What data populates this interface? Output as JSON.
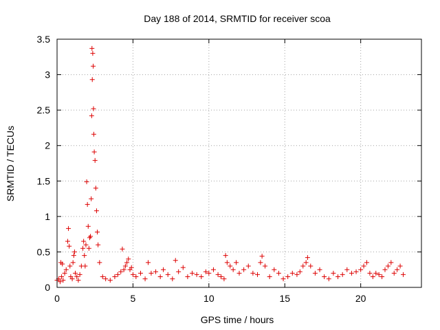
{
  "chart_data": {
    "type": "scatter",
    "title": "Day 188 of 2014, SRMTID for receiver scoa",
    "xlabel": "GPS time / hours",
    "ylabel": "SRMTID / TECUs",
    "xlim": [
      0,
      24
    ],
    "ylim": [
      0,
      3.5
    ],
    "xticks": [
      0,
      5,
      10,
      15,
      20
    ],
    "xtick_labels": [
      "0",
      "5",
      "10",
      "15",
      "20"
    ],
    "yticks": [
      0,
      0.5,
      1,
      1.5,
      2,
      2.5,
      3,
      3.5
    ],
    "ytick_labels": [
      "0",
      "0.5",
      "1",
      "1.5",
      "2",
      "2.5",
      "3",
      "3.5"
    ],
    "grid": true,
    "marker": "+",
    "color": "#dd0000",
    "series": [
      {
        "name": "SRMTID",
        "x": [
          0.0,
          0.1,
          0.2,
          0.25,
          0.3,
          0.35,
          0.4,
          0.5,
          0.6,
          0.7,
          0.75,
          0.8,
          0.85,
          0.9,
          1.0,
          1.05,
          1.1,
          1.15,
          1.2,
          1.3,
          1.4,
          1.5,
          1.6,
          1.7,
          1.75,
          1.8,
          1.85,
          1.9,
          1.95,
          2.0,
          2.05,
          2.1,
          2.15,
          2.2,
          2.25,
          2.28,
          2.3,
          2.32,
          2.35,
          2.38,
          2.4,
          2.42,
          2.45,
          2.5,
          2.55,
          2.6,
          2.65,
          2.7,
          2.8,
          3.0,
          3.2,
          3.5,
          3.8,
          4.0,
          4.2,
          4.3,
          4.4,
          4.5,
          4.6,
          4.7,
          4.8,
          4.9,
          5.0,
          5.2,
          5.5,
          5.8,
          6.0,
          6.2,
          6.5,
          6.8,
          7.0,
          7.3,
          7.6,
          7.8,
          8.0,
          8.3,
          8.6,
          8.9,
          9.2,
          9.5,
          9.8,
          10.0,
          10.3,
          10.6,
          10.8,
          11.0,
          11.1,
          11.2,
          11.4,
          11.6,
          11.8,
          12.0,
          12.3,
          12.6,
          12.9,
          13.2,
          13.4,
          13.5,
          13.7,
          14.0,
          14.3,
          14.6,
          14.9,
          15.2,
          15.5,
          15.8,
          16.0,
          16.2,
          16.4,
          16.5,
          16.7,
          17.0,
          17.3,
          17.6,
          17.9,
          18.2,
          18.5,
          18.8,
          19.1,
          19.4,
          19.7,
          20.0,
          20.2,
          20.4,
          20.6,
          20.8,
          21.0,
          21.2,
          21.4,
          21.6,
          21.8,
          22.0,
          22.2,
          22.4,
          22.6,
          22.8
        ],
        "y": [
          0.1,
          0.12,
          0.08,
          0.35,
          0.15,
          0.33,
          0.1,
          0.2,
          0.25,
          0.65,
          0.83,
          0.58,
          0.3,
          0.15,
          0.12,
          0.35,
          0.45,
          0.5,
          0.2,
          0.15,
          0.1,
          0.18,
          0.3,
          0.55,
          0.65,
          0.45,
          0.3,
          0.6,
          1.49,
          1.17,
          0.86,
          0.55,
          0.7,
          0.72,
          1.25,
          2.42,
          3.37,
          2.93,
          3.3,
          3.12,
          2.52,
          2.16,
          1.91,
          1.79,
          1.4,
          1.08,
          0.78,
          0.6,
          0.35,
          0.15,
          0.12,
          0.1,
          0.15,
          0.18,
          0.22,
          0.54,
          0.25,
          0.3,
          0.35,
          0.4,
          0.25,
          0.28,
          0.18,
          0.15,
          0.2,
          0.12,
          0.35,
          0.2,
          0.22,
          0.15,
          0.25,
          0.18,
          0.12,
          0.38,
          0.22,
          0.28,
          0.15,
          0.2,
          0.18,
          0.15,
          0.22,
          0.2,
          0.25,
          0.18,
          0.15,
          0.12,
          0.45,
          0.35,
          0.3,
          0.25,
          0.35,
          0.2,
          0.25,
          0.3,
          0.2,
          0.18,
          0.35,
          0.44,
          0.3,
          0.15,
          0.25,
          0.2,
          0.12,
          0.15,
          0.2,
          0.18,
          0.22,
          0.3,
          0.35,
          0.42,
          0.3,
          0.2,
          0.25,
          0.15,
          0.12,
          0.2,
          0.15,
          0.18,
          0.25,
          0.2,
          0.22,
          0.25,
          0.3,
          0.35,
          0.2,
          0.15,
          0.2,
          0.18,
          0.15,
          0.25,
          0.3,
          0.35,
          0.2,
          0.25,
          0.3,
          0.18
        ]
      }
    ]
  }
}
